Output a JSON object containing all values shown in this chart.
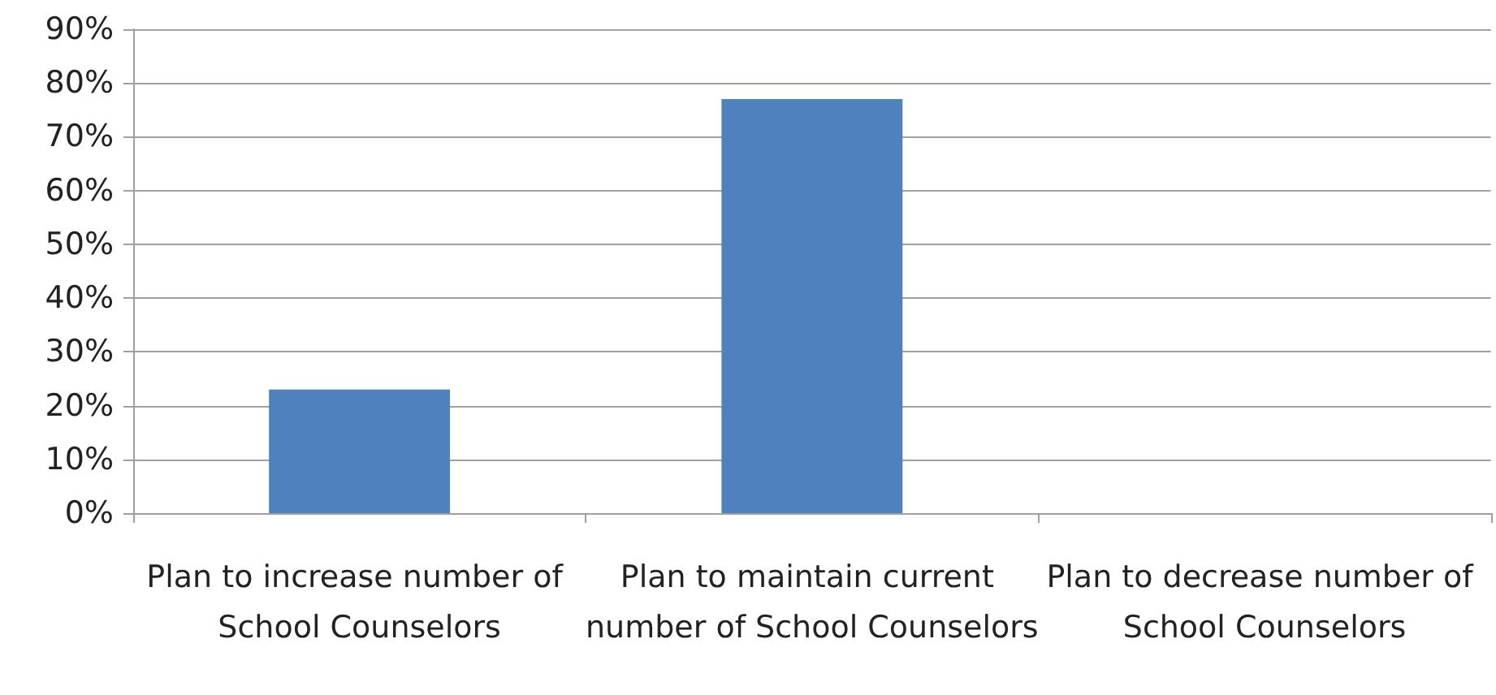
{
  "chart_data": {
    "type": "bar",
    "categories": [
      "Plan to increase number of School Counselors",
      "Plan to maintain current number of School Counselors",
      "Plan to decrease number of School Counselors"
    ],
    "values": [
      23,
      77,
      0
    ],
    "color": "#4f81bd",
    "ylim": [
      0,
      90
    ],
    "yticks": [
      {
        "value": 0,
        "label": "0%"
      },
      {
        "value": 10,
        "label": "10%"
      },
      {
        "value": 20,
        "label": "20%"
      },
      {
        "value": 30,
        "label": "30%"
      },
      {
        "value": 40,
        "label": "40%"
      },
      {
        "value": 50,
        "label": "50%"
      },
      {
        "value": 60,
        "label": "60%"
      },
      {
        "value": 70,
        "label": "70%"
      },
      {
        "value": 80,
        "label": "80%"
      },
      {
        "value": 90,
        "label": "90%"
      }
    ],
    "grid": "y"
  }
}
